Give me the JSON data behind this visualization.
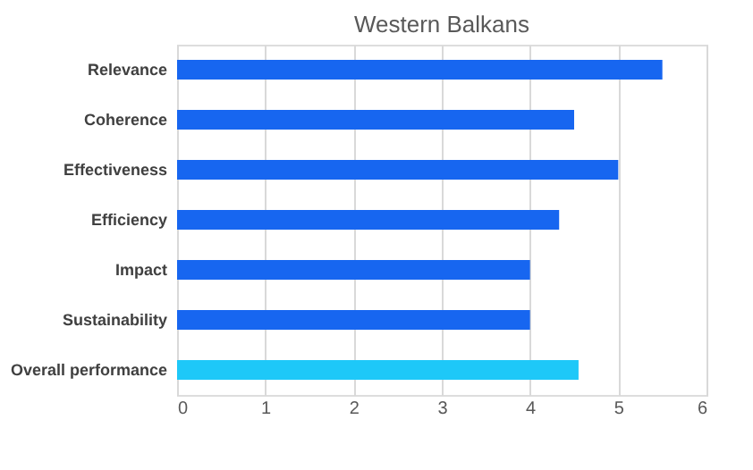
{
  "chart_data": {
    "type": "bar",
    "orientation": "horizontal",
    "title": "Western Balkans",
    "categories": [
      "Relevance",
      "Coherence",
      "Effectiveness",
      "Efficiency",
      "Impact",
      "Sustainability",
      "Overall performance"
    ],
    "values": [
      5.5,
      4.5,
      5.0,
      4.33,
      4.0,
      4.0,
      4.55
    ],
    "colors": [
      "#1766f0",
      "#1766f0",
      "#1766f0",
      "#1766f0",
      "#1766f0",
      "#1766f0",
      "#1ec8f8"
    ],
    "xlim": [
      0,
      6
    ],
    "xticks": [
      0,
      1,
      2,
      3,
      4,
      5,
      6
    ],
    "grid": "x"
  }
}
